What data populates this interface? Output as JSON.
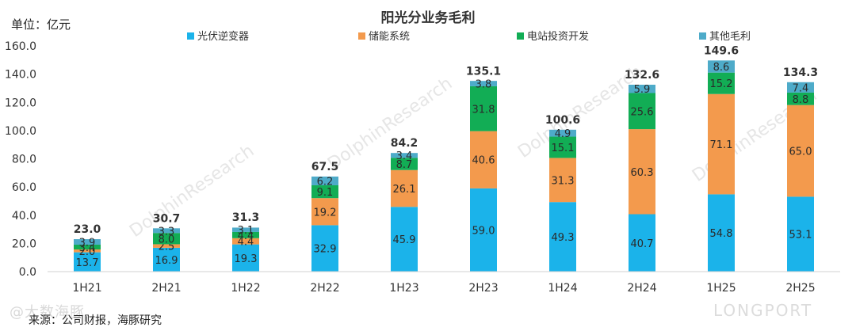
{
  "unit_label": "单位：亿元",
  "source": "来源：公司财报，海豚研究",
  "watermark_left": "@大数海豚",
  "watermark_right": "LONGPORT",
  "watermark_diag": "DolphinResearch",
  "chart_data": {
    "type": "bar",
    "stacked": true,
    "title": "阳光分业务毛利",
    "categories": [
      "1H21",
      "2H21",
      "1H22",
      "2H22",
      "1H23",
      "2H23",
      "1H24",
      "2H24",
      "1H25",
      "2H25"
    ],
    "series": [
      {
        "name": "光伏逆变器",
        "color": "#1bb3ea",
        "values": [
          13.7,
          16.9,
          19.3,
          32.9,
          45.9,
          59.0,
          49.3,
          40.7,
          54.8,
          53.1
        ]
      },
      {
        "name": "储能系统",
        "color": "#f39a4d",
        "values": [
          2.0,
          2.5,
          4.4,
          19.2,
          26.1,
          40.6,
          31.3,
          60.3,
          71.1,
          65.0
        ]
      },
      {
        "name": "电站投资开发",
        "color": "#12ad55",
        "values": [
          3.4,
          8.0,
          4.4,
          9.1,
          8.7,
          31.8,
          15.1,
          25.6,
          15.2,
          8.8
        ]
      },
      {
        "name": "其他毛利",
        "color": "#4eabc9",
        "values": [
          3.9,
          3.3,
          3.1,
          6.2,
          3.4,
          3.8,
          4.9,
          5.9,
          8.6,
          7.4
        ]
      }
    ],
    "totals": [
      23.0,
      30.7,
      31.3,
      67.5,
      84.2,
      135.1,
      100.6,
      132.6,
      149.6,
      134.3
    ],
    "ylim": [
      0,
      160
    ],
    "yticks": [
      "0.0",
      "20.0",
      "40.0",
      "60.0",
      "80.0",
      "100.0",
      "120.0",
      "140.0",
      "160.0"
    ],
    "legend_position": "top",
    "grid": false
  }
}
